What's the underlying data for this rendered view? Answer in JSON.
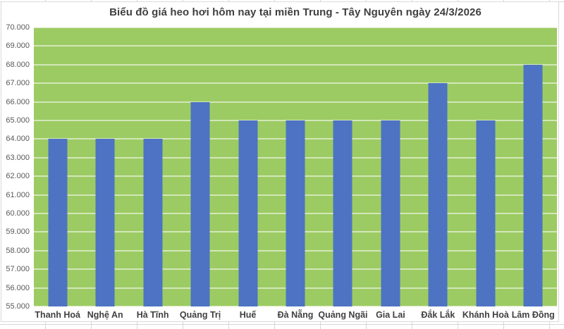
{
  "chart_data": {
    "type": "bar",
    "title": "Biểu đồ giá heo hơi hôm nay tại miền Trung - Tây Nguyên ngày 24/3/2026",
    "categories": [
      "Thanh Hoá",
      "Nghệ An",
      "Hà Tĩnh",
      "Quảng Trị",
      "Huế",
      "Đà Nẵng",
      "Quảng Ngãi",
      "Gia Lai",
      "Đắk Lắk",
      "Khánh Hoà",
      "Lâm Đồng"
    ],
    "values": [
      64000,
      64000,
      64000,
      66000,
      65000,
      65000,
      65000,
      65000,
      67000,
      65000,
      68000
    ],
    "xlabel": "",
    "ylabel": "",
    "ylim": [
      55000,
      70000
    ],
    "ytick_step": 1000,
    "ytick_labels": [
      "55.000",
      "56.000",
      "57.000",
      "58.000",
      "59.000",
      "60.000",
      "61.000",
      "62.000",
      "63.000",
      "64.000",
      "65.000",
      "66.000",
      "67.000",
      "68.000",
      "69.000",
      "70.000"
    ],
    "grid": true,
    "legend": false,
    "colors": {
      "bar": "#4D73C2",
      "plot_bg": "#9CCB63",
      "gridline": "rgba(255,255,255,0.55)",
      "title_text": "#3F3F3F",
      "axis_text": "#595959",
      "category_text": "#404040",
      "frame_border": "#DADADA",
      "sheet_grid": "#D6D6D6"
    }
  }
}
